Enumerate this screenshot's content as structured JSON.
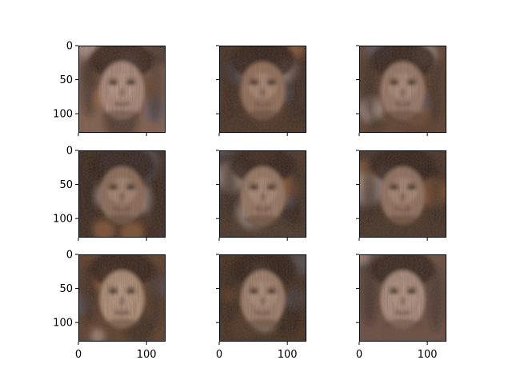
{
  "figure": {
    "background": "#ffffff",
    "grid": {
      "rows": 3,
      "cols": 3
    },
    "shared_axes": {
      "x": "column",
      "y": "row"
    },
    "x_ticks": [
      0,
      100
    ],
    "y_ticks": [
      0,
      50,
      100
    ],
    "x_tick_labels": [
      "0",
      "100"
    ],
    "y_tick_labels": [
      "0",
      "50",
      "100"
    ],
    "image_extent": [
      0,
      128
    ],
    "panel_content": "generated face image (blurry, noisy)",
    "palette": {
      "skin": "#b58f78",
      "skin_light": "#d6b8a6",
      "dark": "#1a1410",
      "shadow": "#4a3428",
      "warm": "#c9804a",
      "pale": "#e8dde0",
      "blue_noise": "#5a6a8a"
    }
  },
  "panels": [
    {
      "id": "r1c1",
      "show_x_labels": false,
      "show_y_labels": true,
      "tone": "#c0a094",
      "bg": "#8a6858"
    },
    {
      "id": "r1c2",
      "show_x_labels": false,
      "show_y_labels": false,
      "tone": "#a07c68",
      "bg": "#3a2a20"
    },
    {
      "id": "r1c3",
      "show_x_labels": false,
      "show_y_labels": false,
      "tone": "#a88a7a",
      "bg": "#5a4030"
    },
    {
      "id": "r2c1",
      "show_x_labels": false,
      "show_y_labels": true,
      "tone": "#9a7a66",
      "bg": "#2e2018"
    },
    {
      "id": "r2c2",
      "show_x_labels": false,
      "show_y_labels": false,
      "tone": "#a88874",
      "bg": "#3e3026"
    },
    {
      "id": "r2c3",
      "show_x_labels": false,
      "show_y_labels": false,
      "tone": "#a08070",
      "bg": "#3a2c22"
    },
    {
      "id": "r3c1",
      "show_x_labels": true,
      "show_y_labels": true,
      "tone": "#c4a690",
      "bg": "#5a3c28"
    },
    {
      "id": "r3c2",
      "show_x_labels": true,
      "show_y_labels": false,
      "tone": "#b09280",
      "bg": "#3a2818"
    },
    {
      "id": "r3c3",
      "show_x_labels": true,
      "show_y_labels": false,
      "tone": "#c0a498",
      "bg": "#6a5048"
    }
  ]
}
